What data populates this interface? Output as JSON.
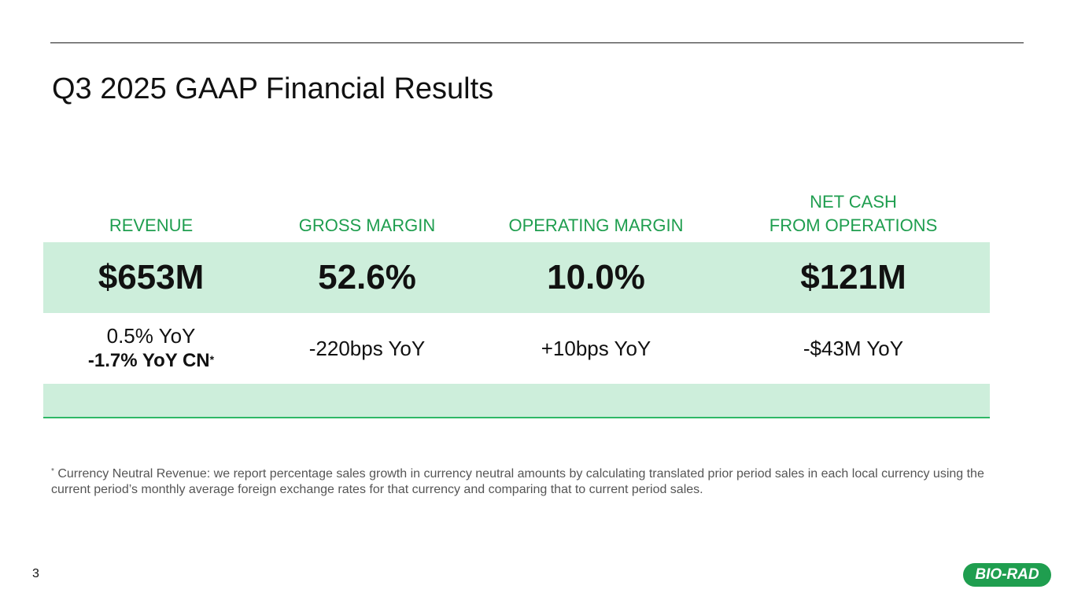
{
  "slide": {
    "title": "Q3 2025 GAAP Financial Results",
    "page_number": "3"
  },
  "metrics": {
    "revenue": {
      "label": "REVENUE",
      "value": "$653M",
      "change_line1": "0.5% YoY",
      "change_line2": "-1.7% YoY CN",
      "change_marker": "*"
    },
    "gross_margin": {
      "label": "GROSS MARGIN",
      "value": "52.6%",
      "change": "-220bps YoY"
    },
    "operating_margin": {
      "label": "OPERATING MARGIN",
      "value": "10.0%",
      "change": "+10bps YoY"
    },
    "net_cash": {
      "label_line1": "NET CASH",
      "label_line2": "FROM OPERATIONS",
      "value": "$121M",
      "change": "-$43M YoY"
    }
  },
  "footnote": {
    "marker": "*",
    "text": " Currency Neutral Revenue: we report percentage sales growth in currency neutral amounts by calculating translated prior period sales in each local currency using the current period’s monthly average foreign exchange rates for that currency and comparing that to current period sales."
  },
  "logo": {
    "text": "BIO-RAD"
  },
  "colors": {
    "accent_green": "#1f9e4f",
    "band_green": "#cdeedb",
    "rule_green": "#2fb866"
  }
}
